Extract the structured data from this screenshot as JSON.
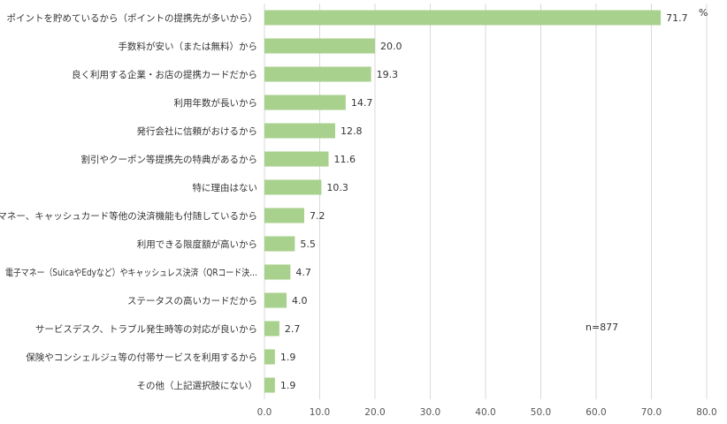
{
  "chart_data": {
    "type": "bar",
    "orientation": "horizontal",
    "categories": [
      "ポイントを貯めているから（ポイントの提携先が多いから）",
      "手数料が安い（または無料）から",
      "良く利用する企業・お店の提携カードだから",
      "利用年数が長いから",
      "発行会社に信頼がおけるから",
      "割引やクーポン等提携先の特典があるから",
      "特に理由はない",
      "電子マネー、キャッシュカード等他の決済機能も付随しているから",
      "利用できる限度額が高いから",
      "電子マネー（SuicaやEdyなど）やキャッシュレス決済（QRコード決…",
      "ステータスの高いカードだから",
      "サービスデスク、トラブル発生時等の対応が良いから",
      "保険やコンシェルジュ等の付帯サービスを利用するから",
      "その他（上記選択肢にない）"
    ],
    "values": [
      71.7,
      20.0,
      19.3,
      14.7,
      12.8,
      11.6,
      10.3,
      7.2,
      5.5,
      4.7,
      4.0,
      2.7,
      1.9,
      1.9
    ],
    "value_labels": [
      "71.7",
      "20.0",
      "19.3",
      "14.7",
      "12.8",
      "11.6",
      "10.3",
      "7.2",
      "5.5",
      "4.7",
      "4.0",
      "2.7",
      "1.9",
      "1.9"
    ],
    "xlim": [
      0,
      80
    ],
    "x_ticks": [
      0,
      10,
      20,
      30,
      40,
      50,
      60,
      70,
      80
    ],
    "x_tick_labels": [
      "0.0",
      "10.0",
      "20.0",
      "30.0",
      "40.0",
      "50.0",
      "60.0",
      "70.0",
      "80.0"
    ],
    "unit": "%",
    "annotation": "n=877",
    "grid": "vertical",
    "bar_color": "#a9d18e",
    "grid_color": "#d9d9d9",
    "legend": "none"
  }
}
